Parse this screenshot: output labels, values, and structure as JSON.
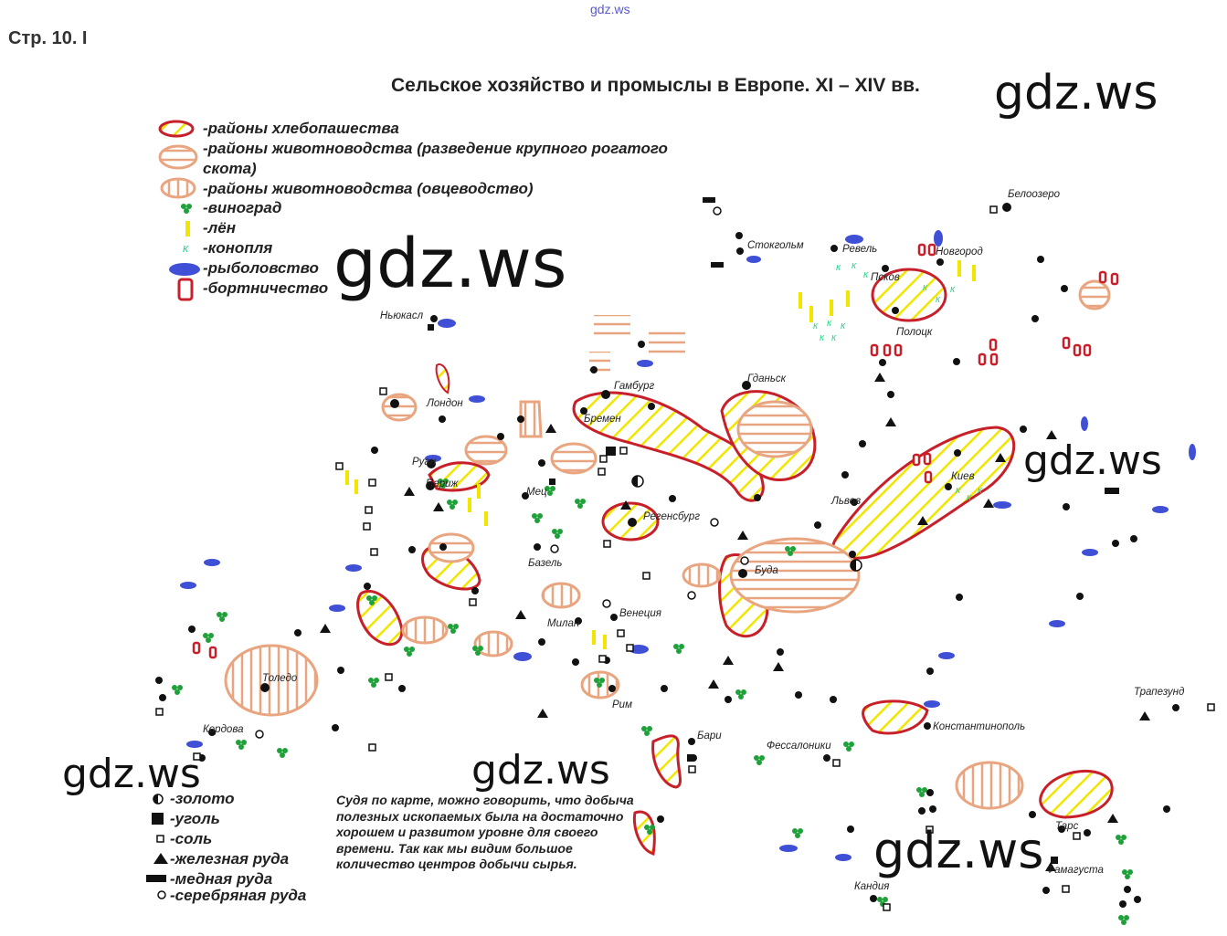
{
  "watermark_small": "gdz.ws",
  "page_ref": "Стр. 10. I",
  "title": "Сельское хозяйство и промыслы в Европе. XI – XIV вв.",
  "watermarks": [
    "gdz.ws",
    "gdz.ws",
    "gdz.ws",
    "gdz.ws",
    "gdz.ws",
    "gdz.ws"
  ],
  "legend_top": [
    {
      "icon": "grain-region-icon",
      "label": "-районы хлебопашества"
    },
    {
      "icon": "cattle-region-icon",
      "label": "-районы животноводства (разведение крупного рогатого"
    },
    {
      "icon": "",
      "label": "скота)"
    },
    {
      "icon": "sheep-region-icon",
      "label": "-районы животноводства (овцеводство)"
    },
    {
      "icon": "grape-icon",
      "label": "-виноград"
    },
    {
      "icon": "flax-icon",
      "label": "-лён"
    },
    {
      "icon": "hemp-icon",
      "label": "-конопля"
    },
    {
      "icon": "fishing-icon",
      "label": "-рыболовство"
    },
    {
      "icon": "beekeeping-icon",
      "label": "-бортничество"
    }
  ],
  "legend_bottom": [
    {
      "icon": "gold-icon",
      "label": "-золото"
    },
    {
      "icon": "coal-icon",
      "label": "-уголь"
    },
    {
      "icon": "salt-icon",
      "label": "-соль"
    },
    {
      "icon": "iron-ore-icon",
      "label": "-железная руда"
    },
    {
      "icon": "copper-ore-icon",
      "label": "-медная руда"
    },
    {
      "icon": "silver-ore-icon",
      "label": "-серебряная руда"
    }
  ],
  "note": "Судя по карте, можно говорить, что добыча полезных ископаемых была на достаточно хорошем и развитом уровне для своего времени. Так как мы видим большое количество центров добычи сырья.",
  "cities": [
    "Белоозеро",
    "Стокгольм",
    "Ревель",
    "Новгород",
    "Псков",
    "Ньюкасл",
    "Полоцк",
    "Гданьск",
    "Гамбург",
    "Лондон",
    "Бремен",
    "Руан",
    "Париж",
    "Мец",
    "Регенсбург",
    "Львов",
    "Киев",
    "Базель",
    "Буда",
    "Венеция",
    "Милан",
    "Толедо",
    "Рим",
    "Кордова",
    "Бари",
    "Константинополь",
    "Трапезунд",
    "Фессалоники",
    "Тарс",
    "Фамагуста",
    "Кандия"
  ],
  "colors": {
    "grain_outline": "#c8202a",
    "grain_hatch": "#f2e600",
    "cattle": "#e8a57f",
    "fish": "#3f4fd6",
    "grape": "#1fa13a",
    "hemp": "#2bd48a",
    "bee": "#c8202a"
  }
}
